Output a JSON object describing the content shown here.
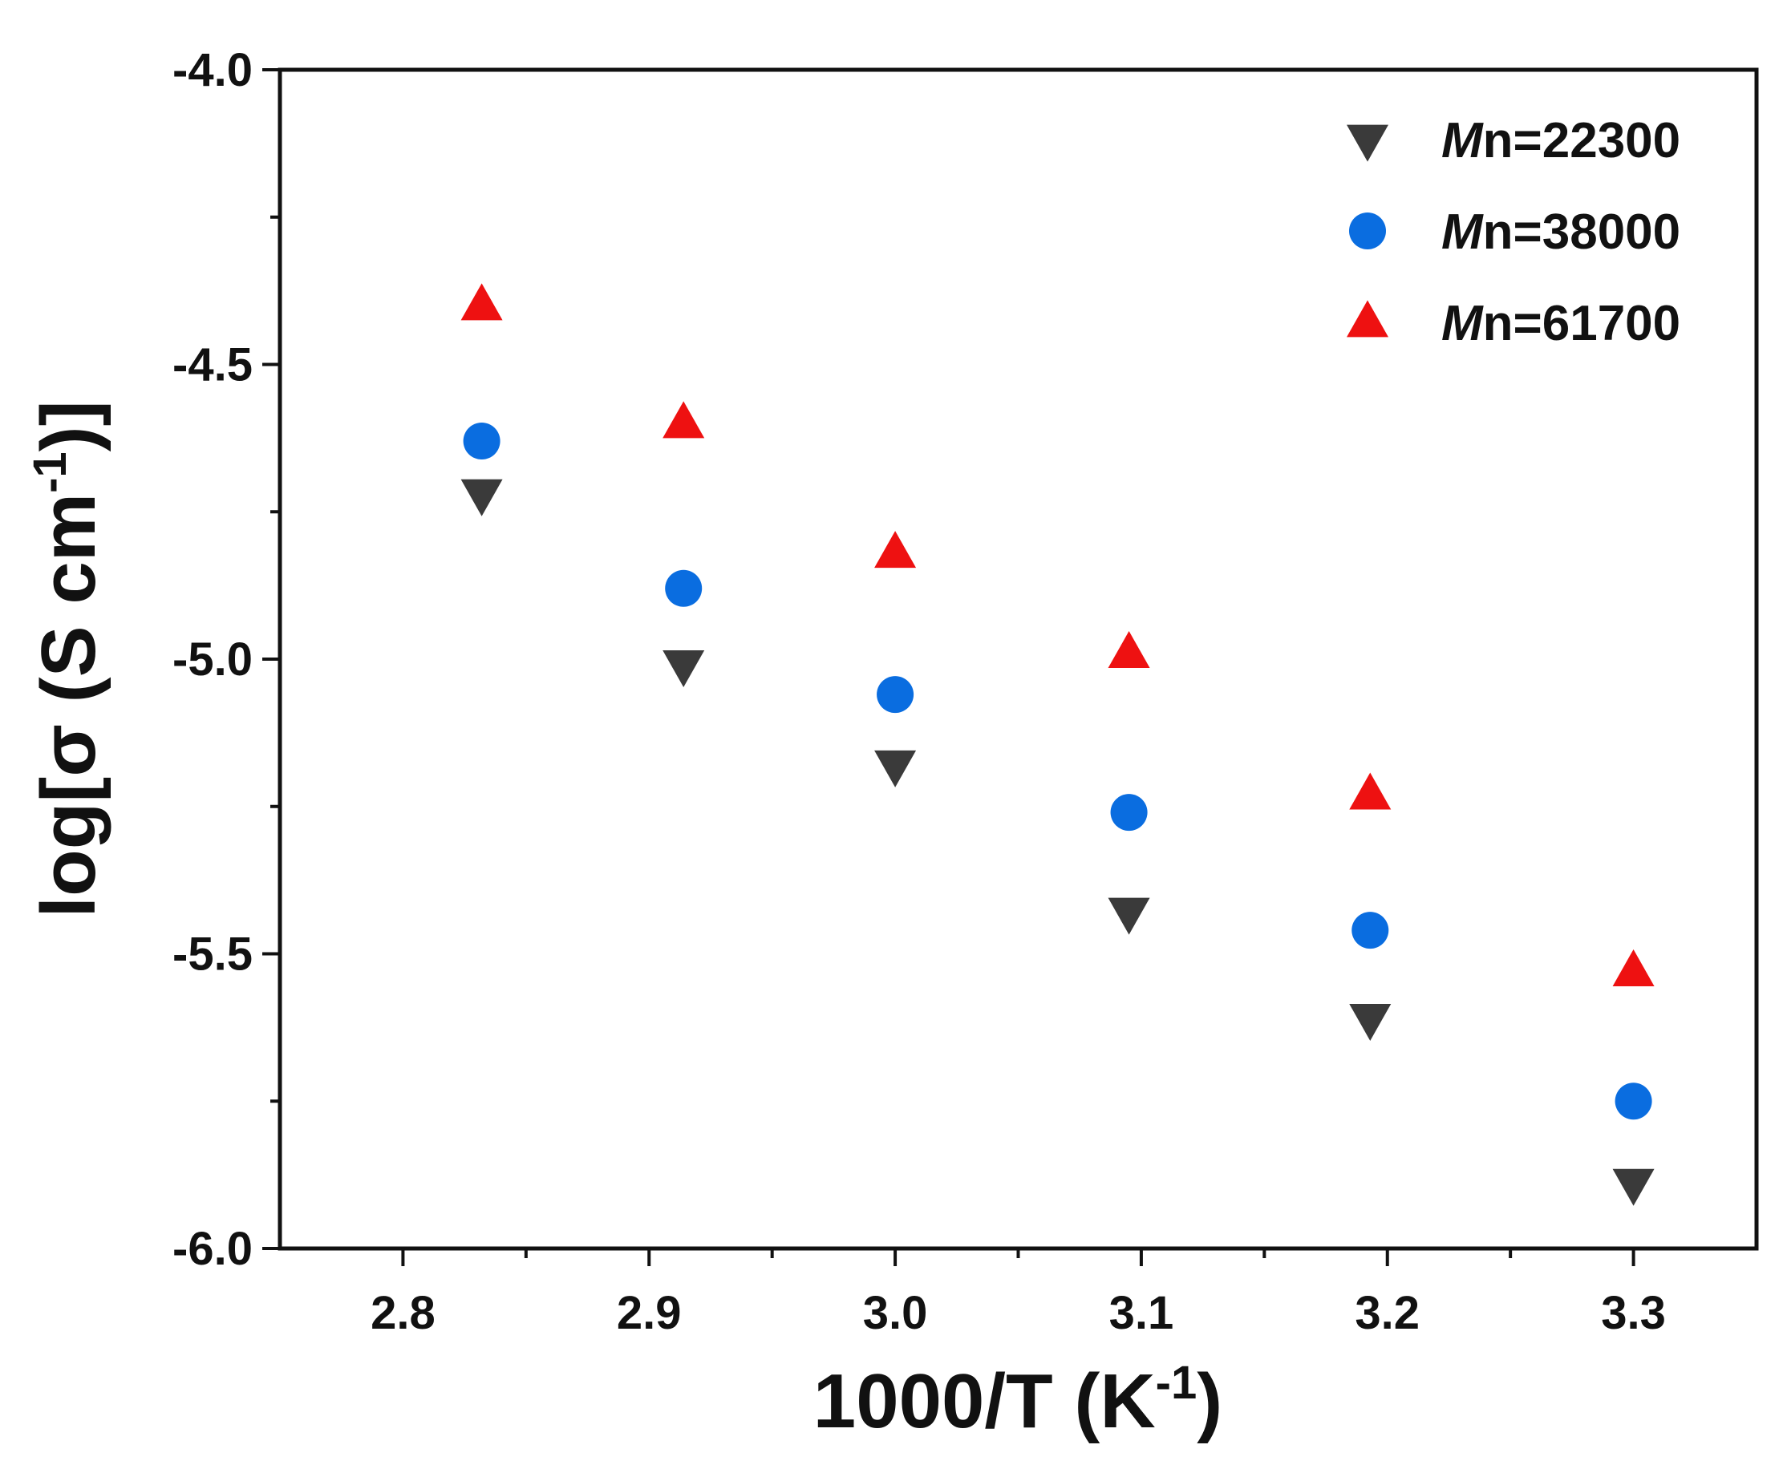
{
  "chart_data": {
    "type": "scatter",
    "title": "",
    "xlabel": {
      "main": "1000/T (K",
      "sup": "-1",
      "close": ")"
    },
    "ylabel": {
      "main": "log[σ (S cm",
      "sup": "-1",
      "close": ")]"
    },
    "xlim": [
      2.75,
      3.35
    ],
    "ylim": [
      -6.0,
      -4.0
    ],
    "x_ticks": [
      2.8,
      2.9,
      3.0,
      3.1,
      3.2,
      3.3
    ],
    "x_tick_labels": [
      "2.8",
      "2.9",
      "3.0",
      "3.1",
      "3.2",
      "3.3"
    ],
    "x_minor_ticks": [
      2.85,
      2.95,
      3.05,
      3.15,
      3.25
    ],
    "y_ticks": [
      -6.0,
      -5.5,
      -5.0,
      -4.5,
      -4.0
    ],
    "y_tick_labels": [
      "-6.0",
      "-5.5",
      "-5.0",
      "-4.5",
      "-4.0"
    ],
    "y_minor_ticks": [
      -5.75,
      -5.25,
      -4.75,
      -4.25
    ],
    "grid": false,
    "legend_position": "top-right",
    "series": [
      {
        "name": "Mn=22300",
        "legend_italic": "M",
        "legend_rest": "n=22300",
        "marker": "triangle-down",
        "color": "#3a3a3a",
        "x": [
          2.832,
          2.914,
          3.0,
          3.095,
          3.193,
          3.3
        ],
        "y": [
          -4.72,
          -5.01,
          -5.18,
          -5.43,
          -5.61,
          -5.89
        ]
      },
      {
        "name": "Mn=38000",
        "legend_italic": "M",
        "legend_rest": "n=38000",
        "marker": "circle",
        "color": "#0a6de0",
        "x": [
          2.832,
          2.914,
          3.0,
          3.095,
          3.193,
          3.3
        ],
        "y": [
          -4.63,
          -4.88,
          -5.06,
          -5.26,
          -5.46,
          -5.75
        ]
      },
      {
        "name": "Mn=61700",
        "legend_italic": "M",
        "legend_rest": "n=61700",
        "marker": "triangle-up",
        "color": "#ee1111",
        "x": [
          2.832,
          2.914,
          3.0,
          3.095,
          3.193,
          3.3
        ],
        "y": [
          -4.4,
          -4.6,
          -4.82,
          -4.99,
          -5.23,
          -5.53
        ]
      }
    ]
  }
}
